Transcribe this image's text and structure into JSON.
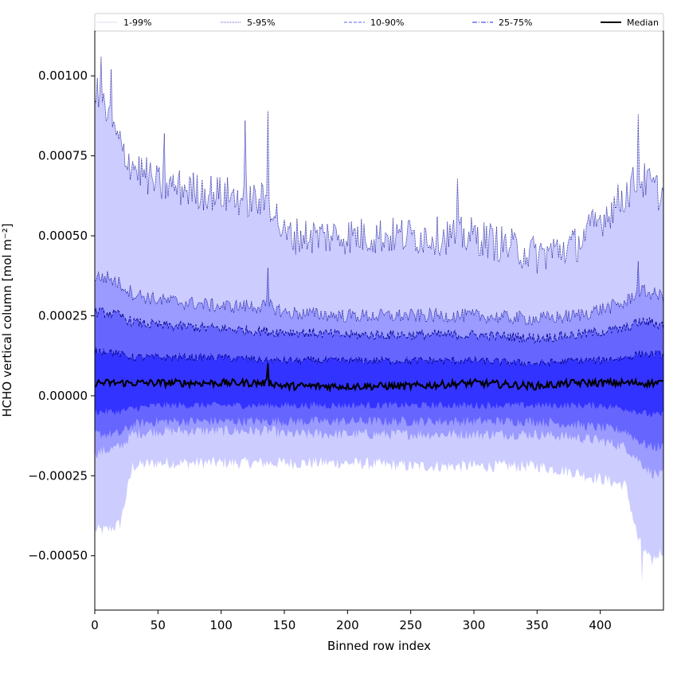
{
  "chart_data": {
    "type": "area",
    "title": "",
    "xlabel": "Binned row index",
    "ylabel": "HCHO vertical column [mol m⁻²]",
    "xlim": [
      0,
      450
    ],
    "ylim": [
      -0.00067,
      0.00114
    ],
    "xticks": [
      0,
      50,
      100,
      150,
      200,
      250,
      300,
      350,
      400
    ],
    "xtick_labels": [
      "0",
      "50",
      "100",
      "150",
      "200",
      "250",
      "300",
      "350",
      "400"
    ],
    "yticks": [
      -0.0005,
      -0.00025,
      0.0,
      0.00025,
      0.0005,
      0.00075,
      0.001
    ],
    "ytick_labels": [
      "−0.00050",
      "−0.00025",
      "0.00000",
      "0.00025",
      "0.00050",
      "0.00075",
      "0.00100"
    ],
    "grid": false,
    "legend_position": "top",
    "colors": {
      "1-99%": "#ccccff",
      "5-95%": "#9a9aff",
      "10-90%": "#6666ff",
      "25-75%": "#3333ff",
      "median": "#000000",
      "edge": "#00008b"
    },
    "series_knots": {
      "x": [
        0,
        10,
        20,
        30,
        50,
        100,
        140,
        150,
        200,
        250,
        300,
        350,
        380,
        400,
        420,
        430,
        440,
        450
      ],
      "p99": [
        0.00095,
        0.00088,
        0.00078,
        0.00072,
        0.00066,
        0.00063,
        0.0006,
        0.0005,
        0.0005,
        0.0005,
        0.0005,
        0.00044,
        0.00047,
        0.00055,
        0.00063,
        0.00068,
        0.00066,
        0.00062
      ],
      "p95": [
        0.00037,
        0.00037,
        0.00035,
        0.00032,
        0.0003,
        0.00028,
        0.00028,
        0.00026,
        0.00025,
        0.00025,
        0.00025,
        0.00024,
        0.00025,
        0.00027,
        0.00029,
        0.00033,
        0.00032,
        0.00031
      ],
      "p90": [
        0.00026,
        0.00026,
        0.00025,
        0.00023,
        0.00022,
        0.00021,
        0.0002,
        0.0002,
        0.00019,
        0.00019,
        0.00019,
        0.00018,
        0.00019,
        0.0002,
        0.00021,
        0.00023,
        0.00023,
        0.00022
      ],
      "p75": [
        0.00014,
        0.00014,
        0.00013,
        0.00012,
        0.00012,
        0.00012,
        0.00011,
        0.00011,
        0.00011,
        0.00011,
        0.00011,
        0.0001,
        0.00011,
        0.00011,
        0.00012,
        0.00013,
        0.00013,
        0.00013
      ],
      "median": [
        4e-05,
        4e-05,
        4e-05,
        4e-05,
        4e-05,
        4e-05,
        4e-05,
        3e-05,
        3e-05,
        3e-05,
        4e-05,
        3e-05,
        4e-05,
        4e-05,
        4e-05,
        4e-05,
        4e-05,
        4e-05
      ],
      "p25": [
        -5e-05,
        -5e-05,
        -5e-05,
        -4e-05,
        -3e-05,
        -3e-05,
        -3e-05,
        -3e-05,
        -3e-05,
        -3e-05,
        -3e-05,
        -3e-05,
        -3e-05,
        -3e-05,
        -4e-05,
        -5e-05,
        -6e-05,
        -6e-05
      ],
      "p10": [
        -0.00012,
        -0.00012,
        -0.00012,
        -9e-05,
        -8e-05,
        -8e-05,
        -8e-05,
        -8e-05,
        -8e-05,
        -8e-05,
        -8e-05,
        -8e-05,
        -9e-05,
        -0.0001,
        -0.00011,
        -0.00014,
        -0.00016,
        -0.00016
      ],
      "p5": [
        -0.00018,
        -0.00017,
        -0.00016,
        -0.00012,
        -0.00011,
        -0.00011,
        -0.00011,
        -0.00012,
        -0.00012,
        -0.00012,
        -0.00012,
        -0.00012,
        -0.00013,
        -0.00014,
        -0.00016,
        -0.0002,
        -0.00024,
        -0.00025
      ],
      "p1": [
        -0.00042,
        -0.00042,
        -0.0004,
        -0.00022,
        -0.00021,
        -0.00021,
        -0.00021,
        -0.00021,
        -0.00021,
        -0.00022,
        -0.00022,
        -0.00022,
        -0.00024,
        -0.00026,
        -0.00028,
        -0.00045,
        -0.00052,
        -0.00048
      ]
    },
    "noise_amplitude": {
      "p99": 6e-05,
      "p95": 2.2e-05,
      "p90": 1.6e-05,
      "p75": 1.2e-05,
      "median": 1.2e-05,
      "p25": 1.2e-05,
      "p10": 1.6e-05,
      "p5": 1.8e-05,
      "p1": 2e-05
    },
    "spikes": [
      {
        "x": 5,
        "band": "p99",
        "value": 0.00106
      },
      {
        "x": 13,
        "band": "p99",
        "value": 0.00102
      },
      {
        "x": 55,
        "band": "p99",
        "value": 0.00082
      },
      {
        "x": 119,
        "band": "p99",
        "value": 0.00086
      },
      {
        "x": 137,
        "band": "p99",
        "value": 0.00089
      },
      {
        "x": 137,
        "band": "p95",
        "value": 0.0004
      },
      {
        "x": 137,
        "band": "median",
        "value": 0.0001
      },
      {
        "x": 287,
        "band": "p99",
        "value": 0.00068
      },
      {
        "x": 430,
        "band": "p99",
        "value": 0.00088
      },
      {
        "x": 430,
        "band": "p95",
        "value": 0.00042
      },
      {
        "x": 433,
        "band": "p1",
        "value": -0.00058
      }
    ],
    "legend": [
      {
        "label": "1-99%",
        "band": "1-99%",
        "dash": "1,1"
      },
      {
        "label": "5-95%",
        "band": "5-95%",
        "dash": "1,1"
      },
      {
        "label": "10-90%",
        "band": "10-90%",
        "dash": "4,2"
      },
      {
        "label": "25-75%",
        "band": "25-75%",
        "dash": "6,2,1,2"
      },
      {
        "label": "Median",
        "band": "median",
        "dash": ""
      }
    ]
  }
}
